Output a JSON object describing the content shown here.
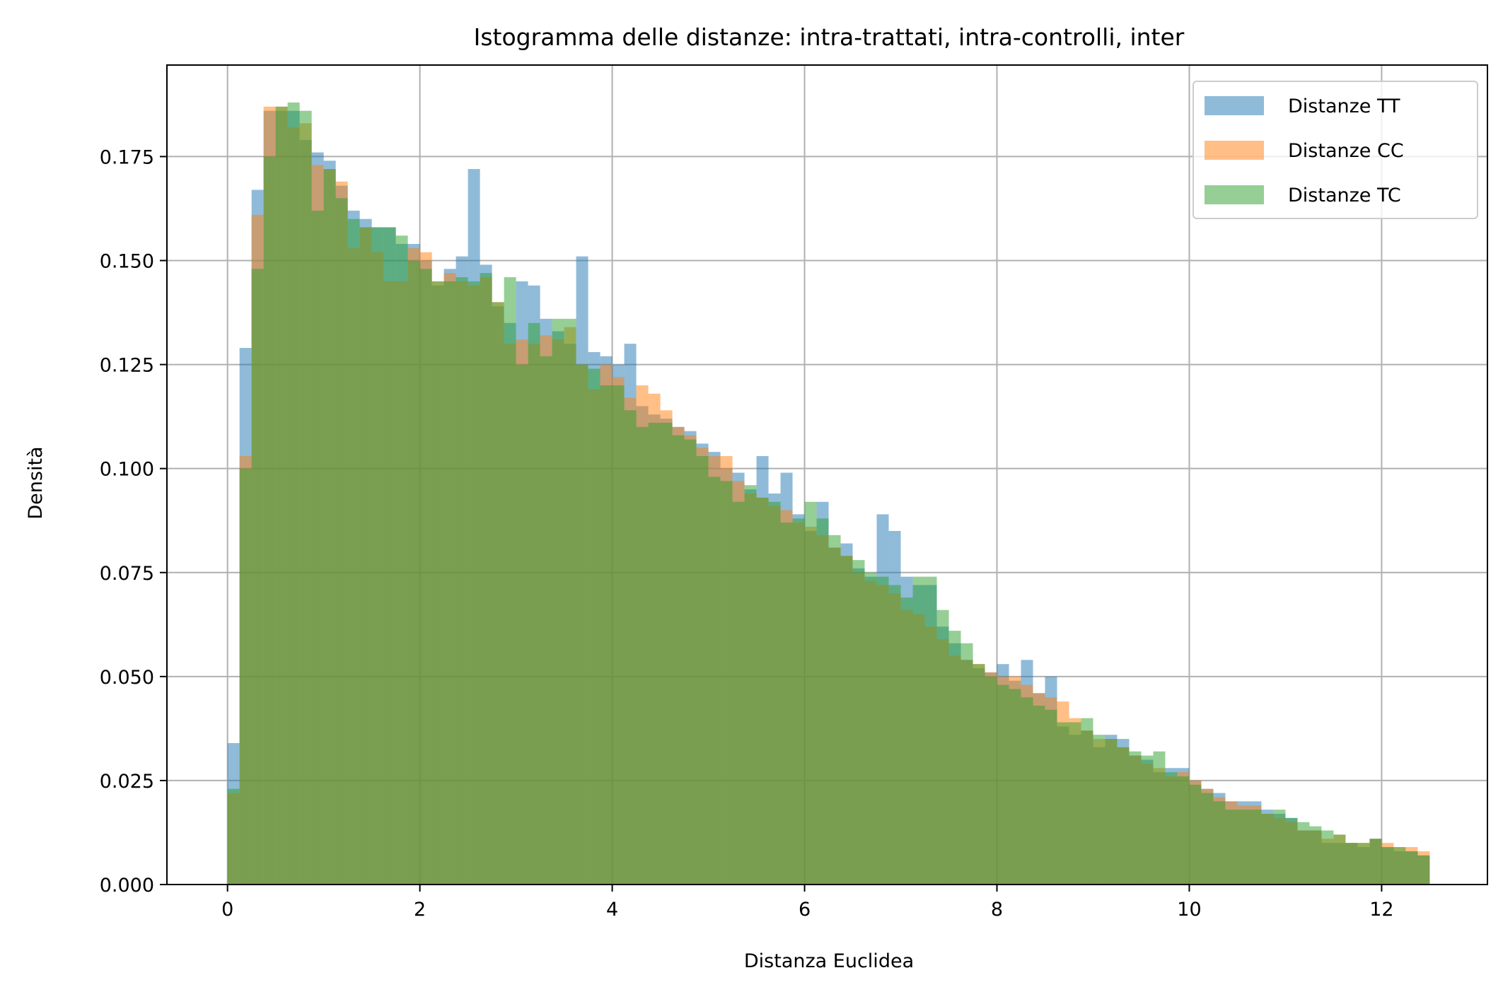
{
  "chart_data": {
    "type": "bar",
    "title": "Istogramma delle distanze: intra-trattati, intra-controlli, inter",
    "xlabel": "Distanza Euclidea",
    "ylabel": "Densità",
    "xlim": [
      -0.63,
      13.1
    ],
    "ylim": [
      0,
      0.197
    ],
    "x_ticks": [
      0,
      2,
      4,
      6,
      8,
      10,
      12
    ],
    "y_ticks": [
      0.0,
      0.025,
      0.05,
      0.075,
      0.1,
      0.125,
      0.15,
      0.175
    ],
    "x_tick_labels": [
      "0",
      "2",
      "4",
      "6",
      "8",
      "10",
      "12"
    ],
    "y_tick_labels": [
      "0.000",
      "0.025",
      "0.050",
      "0.075",
      "0.100",
      "0.125",
      "0.150",
      "0.175"
    ],
    "grid": true,
    "legend_position": "top-right",
    "bin_start": 0,
    "bin_width": 0.125,
    "series": [
      {
        "name": "Distanze TT",
        "color": "#1f77b4",
        "values": [
          0.034,
          0.129,
          0.167,
          0.186,
          0.186,
          0.186,
          0.179,
          0.176,
          0.174,
          0.168,
          0.162,
          0.16,
          0.158,
          0.158,
          0.154,
          0.154,
          0.15,
          0.144,
          0.148,
          0.151,
          0.172,
          0.149,
          0.139,
          0.135,
          0.145,
          0.144,
          0.136,
          0.133,
          0.13,
          0.151,
          0.128,
          0.127,
          0.125,
          0.13,
          0.115,
          0.113,
          0.112,
          0.11,
          0.109,
          0.106,
          0.104,
          0.1,
          0.099,
          0.095,
          0.103,
          0.094,
          0.099,
          0.089,
          0.085,
          0.092,
          0.081,
          0.082,
          0.076,
          0.074,
          0.089,
          0.085,
          0.074,
          0.072,
          0.072,
          0.062,
          0.058,
          0.054,
          0.052,
          0.051,
          0.053,
          0.049,
          0.054,
          0.046,
          0.05,
          0.038,
          0.036,
          0.037,
          0.033,
          0.036,
          0.035,
          0.031,
          0.03,
          0.027,
          0.028,
          0.028,
          0.025,
          0.023,
          0.022,
          0.02,
          0.02,
          0.02,
          0.018,
          0.017,
          0.016,
          0.013,
          0.013,
          0.01,
          0.01,
          0.01,
          0.009,
          0.011,
          0.009,
          0.008,
          0.008,
          0.007
        ]
      },
      {
        "name": "Distanze CC",
        "color": "#ff7f0e",
        "values": [
          0.022,
          0.103,
          0.161,
          0.187,
          0.187,
          0.182,
          0.183,
          0.173,
          0.172,
          0.169,
          0.153,
          0.158,
          0.152,
          0.145,
          0.145,
          0.153,
          0.152,
          0.145,
          0.147,
          0.145,
          0.144,
          0.146,
          0.14,
          0.13,
          0.131,
          0.13,
          0.132,
          0.131,
          0.134,
          0.125,
          0.119,
          0.125,
          0.122,
          0.117,
          0.12,
          0.118,
          0.114,
          0.11,
          0.108,
          0.105,
          0.103,
          0.103,
          0.097,
          0.094,
          0.093,
          0.091,
          0.09,
          0.087,
          0.086,
          0.084,
          0.081,
          0.079,
          0.075,
          0.073,
          0.072,
          0.07,
          0.066,
          0.065,
          0.062,
          0.059,
          0.055,
          0.054,
          0.053,
          0.051,
          0.05,
          0.05,
          0.048,
          0.046,
          0.045,
          0.044,
          0.04,
          0.037,
          0.035,
          0.035,
          0.033,
          0.031,
          0.029,
          0.028,
          0.026,
          0.027,
          0.025,
          0.023,
          0.021,
          0.02,
          0.019,
          0.019,
          0.017,
          0.016,
          0.015,
          0.013,
          0.013,
          0.011,
          0.012,
          0.01,
          0.01,
          0.011,
          0.01,
          0.009,
          0.009,
          0.008
        ]
      },
      {
        "name": "Distanze TC",
        "color": "#2ca02c",
        "values": [
          0.023,
          0.1,
          0.148,
          0.175,
          0.187,
          0.188,
          0.186,
          0.162,
          0.172,
          0.165,
          0.16,
          0.158,
          0.158,
          0.158,
          0.156,
          0.15,
          0.148,
          0.145,
          0.145,
          0.146,
          0.145,
          0.147,
          0.14,
          0.146,
          0.125,
          0.135,
          0.127,
          0.136,
          0.136,
          0.125,
          0.124,
          0.12,
          0.12,
          0.114,
          0.11,
          0.111,
          0.111,
          0.108,
          0.107,
          0.103,
          0.098,
          0.097,
          0.092,
          0.096,
          0.093,
          0.092,
          0.087,
          0.088,
          0.092,
          0.088,
          0.084,
          0.079,
          0.078,
          0.075,
          0.074,
          0.072,
          0.069,
          0.074,
          0.074,
          0.066,
          0.061,
          0.058,
          0.053,
          0.05,
          0.048,
          0.047,
          0.045,
          0.043,
          0.042,
          0.039,
          0.039,
          0.04,
          0.036,
          0.035,
          0.033,
          0.032,
          0.031,
          0.032,
          0.027,
          0.026,
          0.024,
          0.022,
          0.02,
          0.018,
          0.018,
          0.018,
          0.017,
          0.018,
          0.016,
          0.015,
          0.014,
          0.013,
          0.012,
          0.01,
          0.01,
          0.011,
          0.009,
          0.009,
          0.008,
          0.007
        ]
      }
    ]
  }
}
